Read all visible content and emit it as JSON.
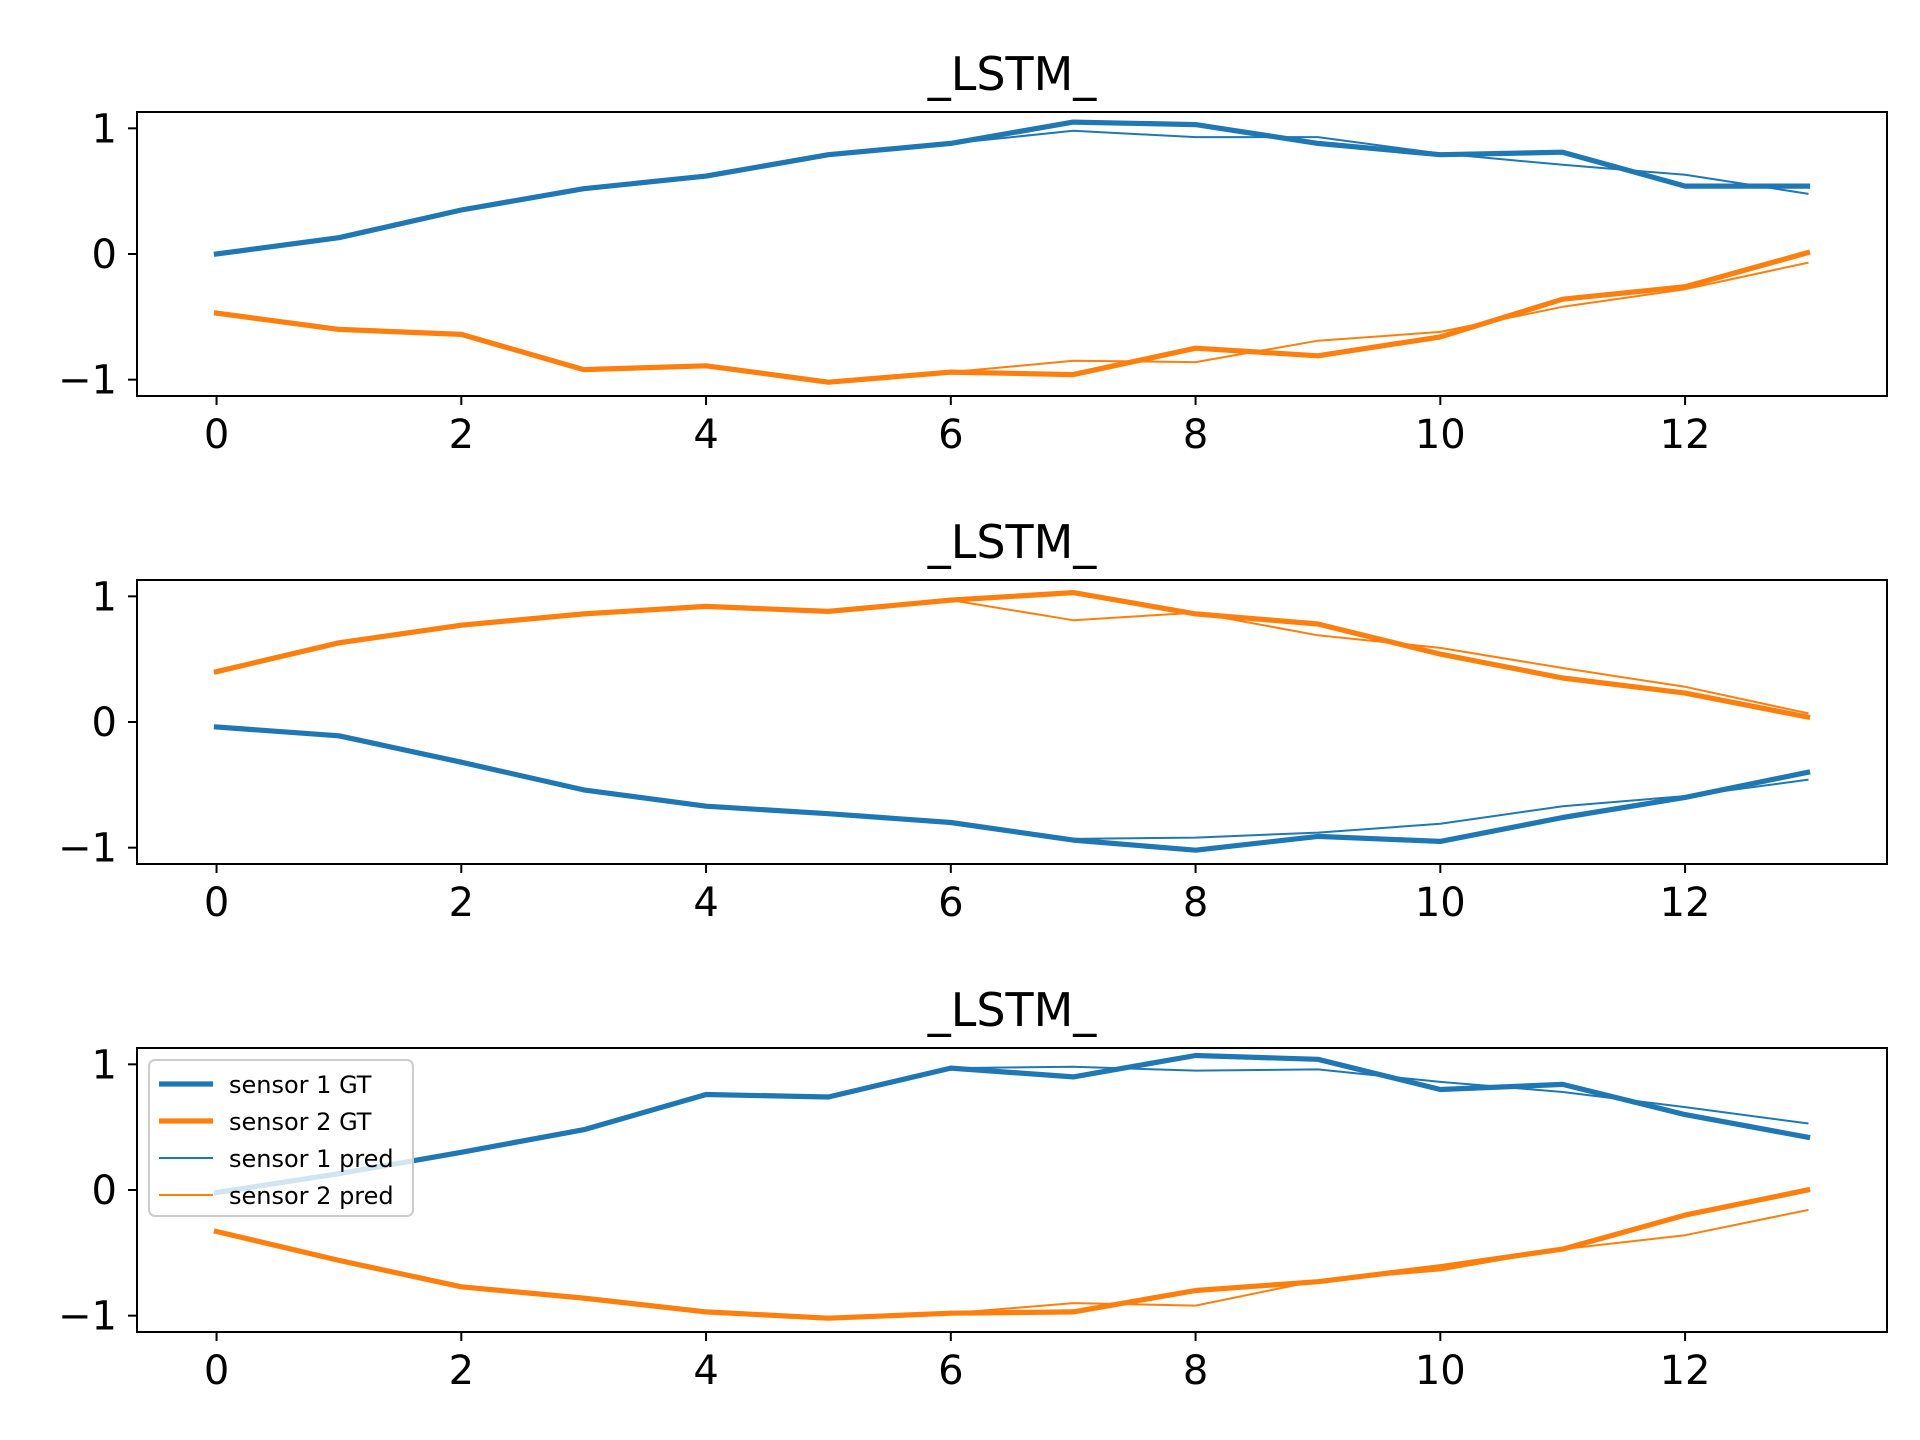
{
  "chart_data": [
    {
      "type": "line",
      "title": "_LSTM_",
      "xlabel": "",
      "ylabel": "",
      "xlim": [
        -0.65,
        13.65
      ],
      "ylim": [
        -1.13,
        1.13
      ],
      "xticks": [
        "0",
        "2",
        "4",
        "6",
        "8",
        "10",
        "12"
      ],
      "yticks": [
        "−1",
        "0",
        "1"
      ],
      "grid": false,
      "legend": null,
      "x": [
        0,
        1,
        2,
        3,
        4,
        5,
        6,
        7,
        8,
        9,
        10,
        11,
        12,
        13
      ],
      "series": [
        {
          "key": "s1gt",
          "color": "#1f77b4",
          "width": "thick",
          "values": [
            0.0,
            0.13,
            0.35,
            0.52,
            0.62,
            0.79,
            0.88,
            1.05,
            1.03,
            0.88,
            0.79,
            0.81,
            0.54,
            0.54
          ]
        },
        {
          "key": "s2gt",
          "color": "#ff7f0e",
          "width": "thick",
          "values": [
            -0.47,
            -0.6,
            -0.64,
            -0.92,
            -0.89,
            -1.02,
            -0.94,
            -0.96,
            -0.75,
            -0.81,
            -0.66,
            -0.36,
            -0.26,
            0.01
          ]
        },
        {
          "key": "s1pred",
          "color": "#1f77b4",
          "width": "thin",
          "values": [
            0.0,
            0.13,
            0.35,
            0.52,
            0.62,
            0.79,
            0.88,
            0.98,
            0.93,
            0.93,
            0.8,
            0.71,
            0.63,
            0.48
          ]
        },
        {
          "key": "s2pred",
          "color": "#ff7f0e",
          "width": "thin",
          "values": [
            -0.47,
            -0.6,
            -0.64,
            -0.92,
            -0.89,
            -1.02,
            -0.94,
            -0.85,
            -0.86,
            -0.69,
            -0.62,
            -0.42,
            -0.28,
            -0.07
          ]
        }
      ]
    },
    {
      "type": "line",
      "title": "_LSTM_",
      "xlabel": "",
      "ylabel": "",
      "xlim": [
        -0.65,
        13.65
      ],
      "ylim": [
        -1.13,
        1.13
      ],
      "xticks": [
        "0",
        "2",
        "4",
        "6",
        "8",
        "10",
        "12"
      ],
      "yticks": [
        "−1",
        "0",
        "1"
      ],
      "grid": false,
      "legend": null,
      "x": [
        0,
        1,
        2,
        3,
        4,
        5,
        6,
        7,
        8,
        9,
        10,
        11,
        12,
        13
      ],
      "series": [
        {
          "key": "s1gt",
          "color": "#1f77b4",
          "width": "thick",
          "values": [
            -0.04,
            -0.11,
            -0.32,
            -0.54,
            -0.67,
            -0.73,
            -0.8,
            -0.94,
            -1.02,
            -0.91,
            -0.95,
            -0.76,
            -0.6,
            -0.4
          ]
        },
        {
          "key": "s2gt",
          "color": "#ff7f0e",
          "width": "thick",
          "values": [
            0.4,
            0.63,
            0.77,
            0.86,
            0.92,
            0.88,
            0.97,
            1.03,
            0.86,
            0.78,
            0.54,
            0.35,
            0.23,
            0.04
          ]
        },
        {
          "key": "s1pred",
          "color": "#1f77b4",
          "width": "thin",
          "values": [
            -0.04,
            -0.11,
            -0.32,
            -0.54,
            -0.67,
            -0.73,
            -0.8,
            -0.93,
            -0.92,
            -0.88,
            -0.81,
            -0.67,
            -0.59,
            -0.46
          ]
        },
        {
          "key": "s2pred",
          "color": "#ff7f0e",
          "width": "thin",
          "values": [
            0.4,
            0.63,
            0.77,
            0.86,
            0.92,
            0.88,
            0.97,
            0.81,
            0.87,
            0.69,
            0.59,
            0.43,
            0.28,
            0.07
          ]
        }
      ]
    },
    {
      "type": "line",
      "title": "_LSTM_",
      "xlabel": "",
      "ylabel": "",
      "xlim": [
        -0.65,
        13.65
      ],
      "ylim": [
        -1.13,
        1.13
      ],
      "xticks": [
        "0",
        "2",
        "4",
        "6",
        "8",
        "10",
        "12"
      ],
      "yticks": [
        "−1",
        "0",
        "1"
      ],
      "grid": false,
      "legend": "upper left",
      "x": [
        0,
        1,
        2,
        3,
        4,
        5,
        6,
        7,
        8,
        9,
        10,
        11,
        12,
        13
      ],
      "series": [
        {
          "key": "s1gt",
          "name": "sensor 1 GT",
          "color": "#1f77b4",
          "width": "thick",
          "values": [
            -0.02,
            0.13,
            0.3,
            0.48,
            0.76,
            0.74,
            0.97,
            0.9,
            1.07,
            1.04,
            0.8,
            0.84,
            0.6,
            0.42
          ]
        },
        {
          "key": "s2gt",
          "name": "sensor 2 GT",
          "color": "#ff7f0e",
          "width": "thick",
          "values": [
            -0.33,
            -0.56,
            -0.77,
            -0.86,
            -0.97,
            -1.02,
            -0.98,
            -0.97,
            -0.8,
            -0.73,
            -0.61,
            -0.47,
            -0.2,
            0.0
          ]
        },
        {
          "key": "s1pred",
          "name": "sensor 1 pred",
          "color": "#1f77b4",
          "width": "thin",
          "values": [
            -0.02,
            0.13,
            0.3,
            0.48,
            0.76,
            0.74,
            0.97,
            0.98,
            0.95,
            0.96,
            0.86,
            0.78,
            0.66,
            0.53
          ]
        },
        {
          "key": "s2pred",
          "name": "sensor 2 pred",
          "color": "#ff7f0e",
          "width": "thin",
          "values": [
            -0.33,
            -0.56,
            -0.77,
            -0.86,
            -0.97,
            -1.02,
            -0.98,
            -0.9,
            -0.92,
            -0.72,
            -0.64,
            -0.47,
            -0.36,
            -0.16
          ]
        }
      ]
    }
  ]
}
